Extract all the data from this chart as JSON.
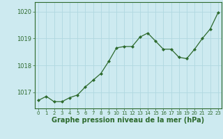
{
  "x": [
    0,
    1,
    2,
    3,
    4,
    5,
    6,
    7,
    8,
    9,
    10,
    11,
    12,
    13,
    14,
    15,
    16,
    17,
    18,
    19,
    20,
    21,
    22,
    23
  ],
  "y": [
    1016.7,
    1016.85,
    1016.65,
    1016.65,
    1016.8,
    1016.9,
    1017.2,
    1017.45,
    1017.7,
    1018.15,
    1018.65,
    1018.7,
    1018.7,
    1019.05,
    1019.2,
    1018.9,
    1018.6,
    1018.6,
    1018.3,
    1018.25,
    1018.6,
    1019.0,
    1019.35,
    1019.95
  ],
  "line_color": "#2d6a2d",
  "marker_color": "#2d6a2d",
  "bg_color": "#cdeaf0",
  "grid_color": "#b0d8e0",
  "ylabel_ticks": [
    1017,
    1018,
    1019,
    1020
  ],
  "xlabel": "Graphe pression niveau de la mer (hPa)",
  "xlabel_fontsize": 7,
  "ylim": [
    1016.4,
    1020.35
  ],
  "xlim": [
    -0.5,
    23.5
  ],
  "tick_label_color": "#2d6a2d",
  "xlabel_color": "#2d6a2d",
  "xtick_fontsize": 5.0,
  "ytick_fontsize": 6.0
}
